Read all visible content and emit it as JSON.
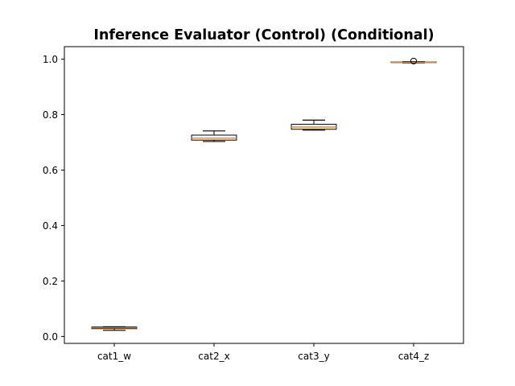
{
  "chart_data": {
    "type": "box",
    "title": "Inference Evaluator (Control) (Conditional)",
    "xlabel": "",
    "ylabel": "",
    "ylim": [
      -0.025,
      1.045
    ],
    "yticks": [
      0.0,
      0.2,
      0.4,
      0.6,
      0.8,
      1.0
    ],
    "ytick_labels": [
      "0.0",
      "0.2",
      "0.4",
      "0.6",
      "0.8",
      "1.0"
    ],
    "grid": false,
    "legend": "none",
    "categories": [
      "cat1_w",
      "cat2_x",
      "cat3_y",
      "cat4_z"
    ],
    "boxes": [
      {
        "category": "cat1_w",
        "whisker_low": 0.022,
        "q1": 0.028,
        "median": 0.031,
        "q3": 0.034,
        "whisker_high": 0.035,
        "outliers": []
      },
      {
        "category": "cat2_x",
        "whisker_low": 0.703,
        "q1": 0.708,
        "median": 0.715,
        "q3": 0.726,
        "whisker_high": 0.741,
        "outliers": []
      },
      {
        "category": "cat3_y",
        "whisker_low": 0.744,
        "q1": 0.747,
        "median": 0.755,
        "q3": 0.765,
        "whisker_high": 0.78,
        "outliers": []
      },
      {
        "category": "cat4_z",
        "whisker_low": 0.987,
        "q1": 0.988,
        "median": 0.989,
        "q3": 0.99,
        "whisker_high": 0.991,
        "outliers": [
          0.993
        ]
      }
    ],
    "colors": {
      "box_edge": "#000000",
      "median": "#ff7f0e",
      "axes": "#000000",
      "background": "#ffffff"
    }
  }
}
